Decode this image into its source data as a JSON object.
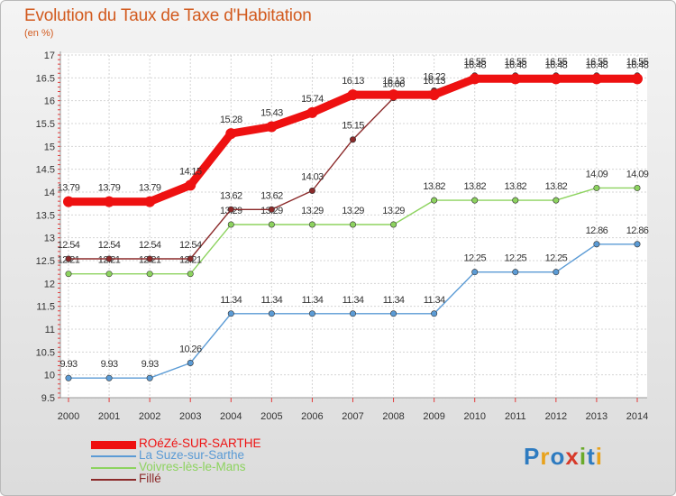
{
  "title": "Evolution du Taux de Taxe d'Habitation",
  "unit_label": "(en %)",
  "brand": {
    "letters": [
      "P",
      "r",
      "o",
      "x",
      "i",
      "t",
      "i"
    ],
    "letter_colors": [
      "#2e7bc0",
      "#e8a21c",
      "#2e7bc0",
      "#d73a2a",
      "#6aaa2a",
      "#2e7bc0",
      "#e8a21c"
    ]
  },
  "chart_data": {
    "type": "line",
    "title": "Evolution du Taux de Taxe d'Habitation",
    "ylabel": "(en %)",
    "xlabel": "",
    "x": [
      "2000",
      "2001",
      "2002",
      "2003",
      "2004",
      "2005",
      "2006",
      "2007",
      "2008",
      "2009",
      "2010",
      "2011",
      "2012",
      "2013",
      "2014"
    ],
    "ylim": [
      9.5,
      17
    ],
    "yticks": [
      "9.5",
      "10",
      "10.5",
      "11",
      "11.5",
      "12",
      "12.5",
      "13",
      "13.5",
      "14",
      "14.5",
      "15",
      "15.5",
      "16",
      "16.5",
      "17"
    ],
    "grid": true,
    "legend_position": "bottom-left",
    "series": [
      {
        "name": "ROéZé-SUR-SARTHE",
        "color": "#ee1111",
        "values": [
          13.79,
          13.79,
          13.79,
          14.15,
          15.28,
          15.43,
          15.74,
          16.13,
          16.13,
          16.13,
          16.48,
          16.48,
          16.48,
          16.48,
          16.48
        ],
        "labels": [
          "13.79",
          "13.79",
          "13.79",
          "14.15",
          "15.28",
          "15.43",
          "15.74",
          "16.13",
          "16.13",
          "16.13",
          "16.48",
          "16.48",
          "16.48",
          "16.48",
          "16.48"
        ]
      },
      {
        "name": "La Suze-sur-Sarthe",
        "color": "#5b9bd5",
        "values": [
          9.93,
          9.93,
          9.93,
          10.26,
          11.34,
          11.34,
          11.34,
          11.34,
          11.34,
          11.34,
          12.25,
          12.25,
          12.25,
          12.86,
          12.86
        ],
        "labels": [
          "9.93",
          "9.93",
          "9.93",
          "10.26",
          "11.34",
          "11.34",
          "11.34",
          "11.34",
          "11.34",
          "11.34",
          "12.25",
          "12.25",
          "12.25",
          "12.86",
          "12.86"
        ]
      },
      {
        "name": "Voivres-lès-le-Mans",
        "color": "#8dd35f",
        "values": [
          12.21,
          12.21,
          12.21,
          12.21,
          13.29,
          13.29,
          13.29,
          13.29,
          13.29,
          13.82,
          13.82,
          13.82,
          13.82,
          14.09,
          14.09
        ],
        "labels": [
          "12.21",
          "12.21",
          "12.21",
          "12.21",
          "13.29",
          "13.29",
          "13.29",
          "13.29",
          "13.29",
          "13.82",
          "13.82",
          "13.82",
          "13.82",
          "14.09",
          "14.09"
        ]
      },
      {
        "name": "Fillé",
        "color": "#8b2a2a",
        "values": [
          12.54,
          12.54,
          12.54,
          12.54,
          13.62,
          13.62,
          14.03,
          15.15,
          16.06,
          16.22,
          16.55,
          16.55,
          16.55,
          16.55,
          16.55
        ],
        "labels": [
          "12.54",
          "12.54",
          "12.54",
          "12.54",
          "13.62",
          "13.62",
          "14.03",
          "15.15",
          "16.06",
          "16.22",
          "16.55",
          "16.55",
          "16.55",
          "16.55",
          "16.55"
        ]
      }
    ]
  }
}
